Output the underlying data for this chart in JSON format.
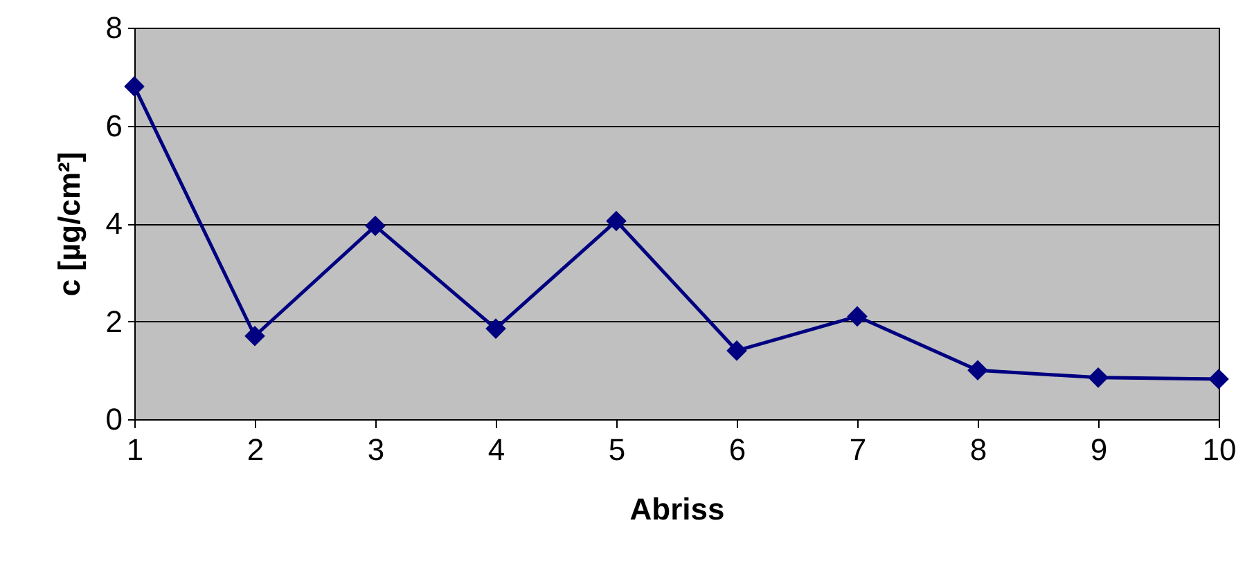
{
  "chart_data": {
    "type": "line",
    "xlabel": "Abriss",
    "ylabel": "c [µg/cm²]",
    "categories": [
      "1",
      "2",
      "3",
      "4",
      "5",
      "6",
      "7",
      "8",
      "9",
      "10"
    ],
    "series": [
      {
        "color": "#000080",
        "values": [
          6.8,
          1.7,
          3.95,
          1.85,
          4.05,
          1.4,
          2.1,
          1.0,
          0.85,
          0.82
        ]
      }
    ],
    "ylim": [
      0,
      8
    ],
    "yticks": [
      0,
      2,
      4,
      6,
      8
    ],
    "grid": "y",
    "marker": "diamond"
  }
}
